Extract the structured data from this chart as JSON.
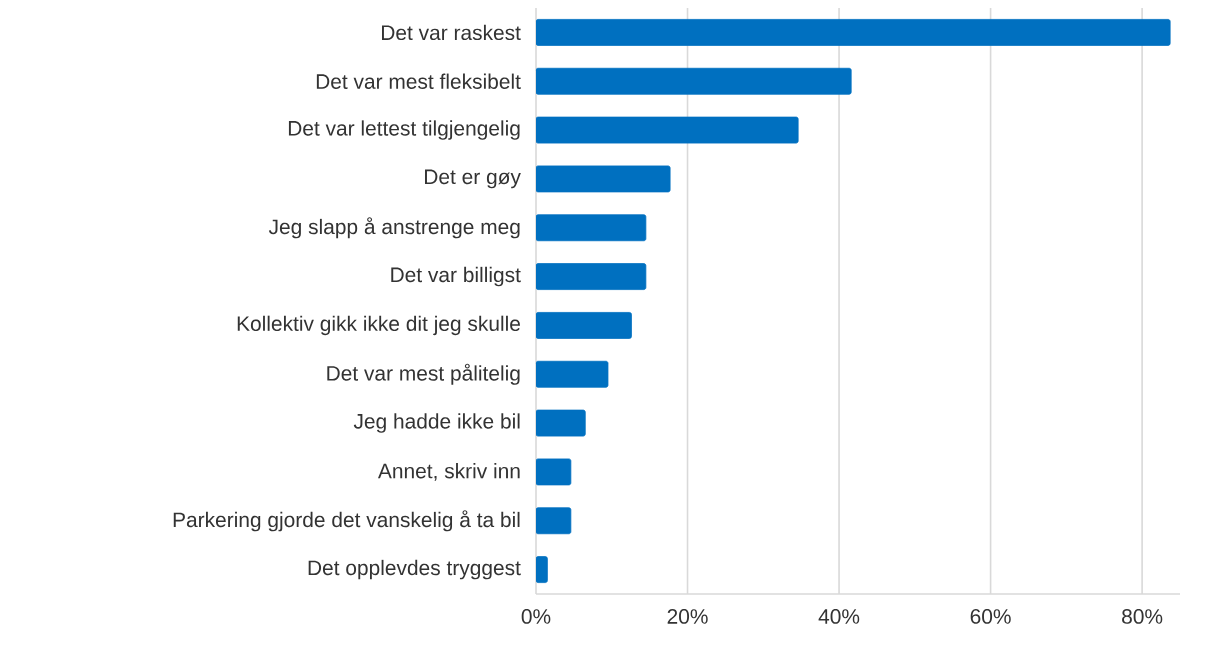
{
  "chart_data": {
    "type": "bar",
    "orientation": "horizontal",
    "categories": [
      "Det var raskest",
      "Det var mest fleksibelt",
      "Det var lettest tilgjengelig",
      "Det er gøy",
      "Jeg slapp å anstrenge meg",
      "Det var billigst",
      "Kollektiv gikk ikke dit jeg skulle",
      "Det var mest pålitelig",
      "Jeg hadde ikke bil",
      "Annet, skriv inn",
      "Parkering gjorde det vanskelig å ta bil",
      "Det opplevdes tryggest"
    ],
    "values": [
      83.7,
      41.6,
      34.6,
      17.7,
      14.5,
      14.5,
      12.6,
      9.5,
      6.5,
      4.6,
      4.6,
      1.5
    ],
    "color": "#0070c0",
    "xlim": [
      0,
      85
    ],
    "xticks": [
      {
        "value": 0,
        "label": "0%"
      },
      {
        "value": 20,
        "label": "20%"
      },
      {
        "value": 40,
        "label": "40%"
      },
      {
        "value": 60,
        "label": "60%"
      },
      {
        "value": 80,
        "label": "80%"
      }
    ],
    "grid": "x"
  }
}
